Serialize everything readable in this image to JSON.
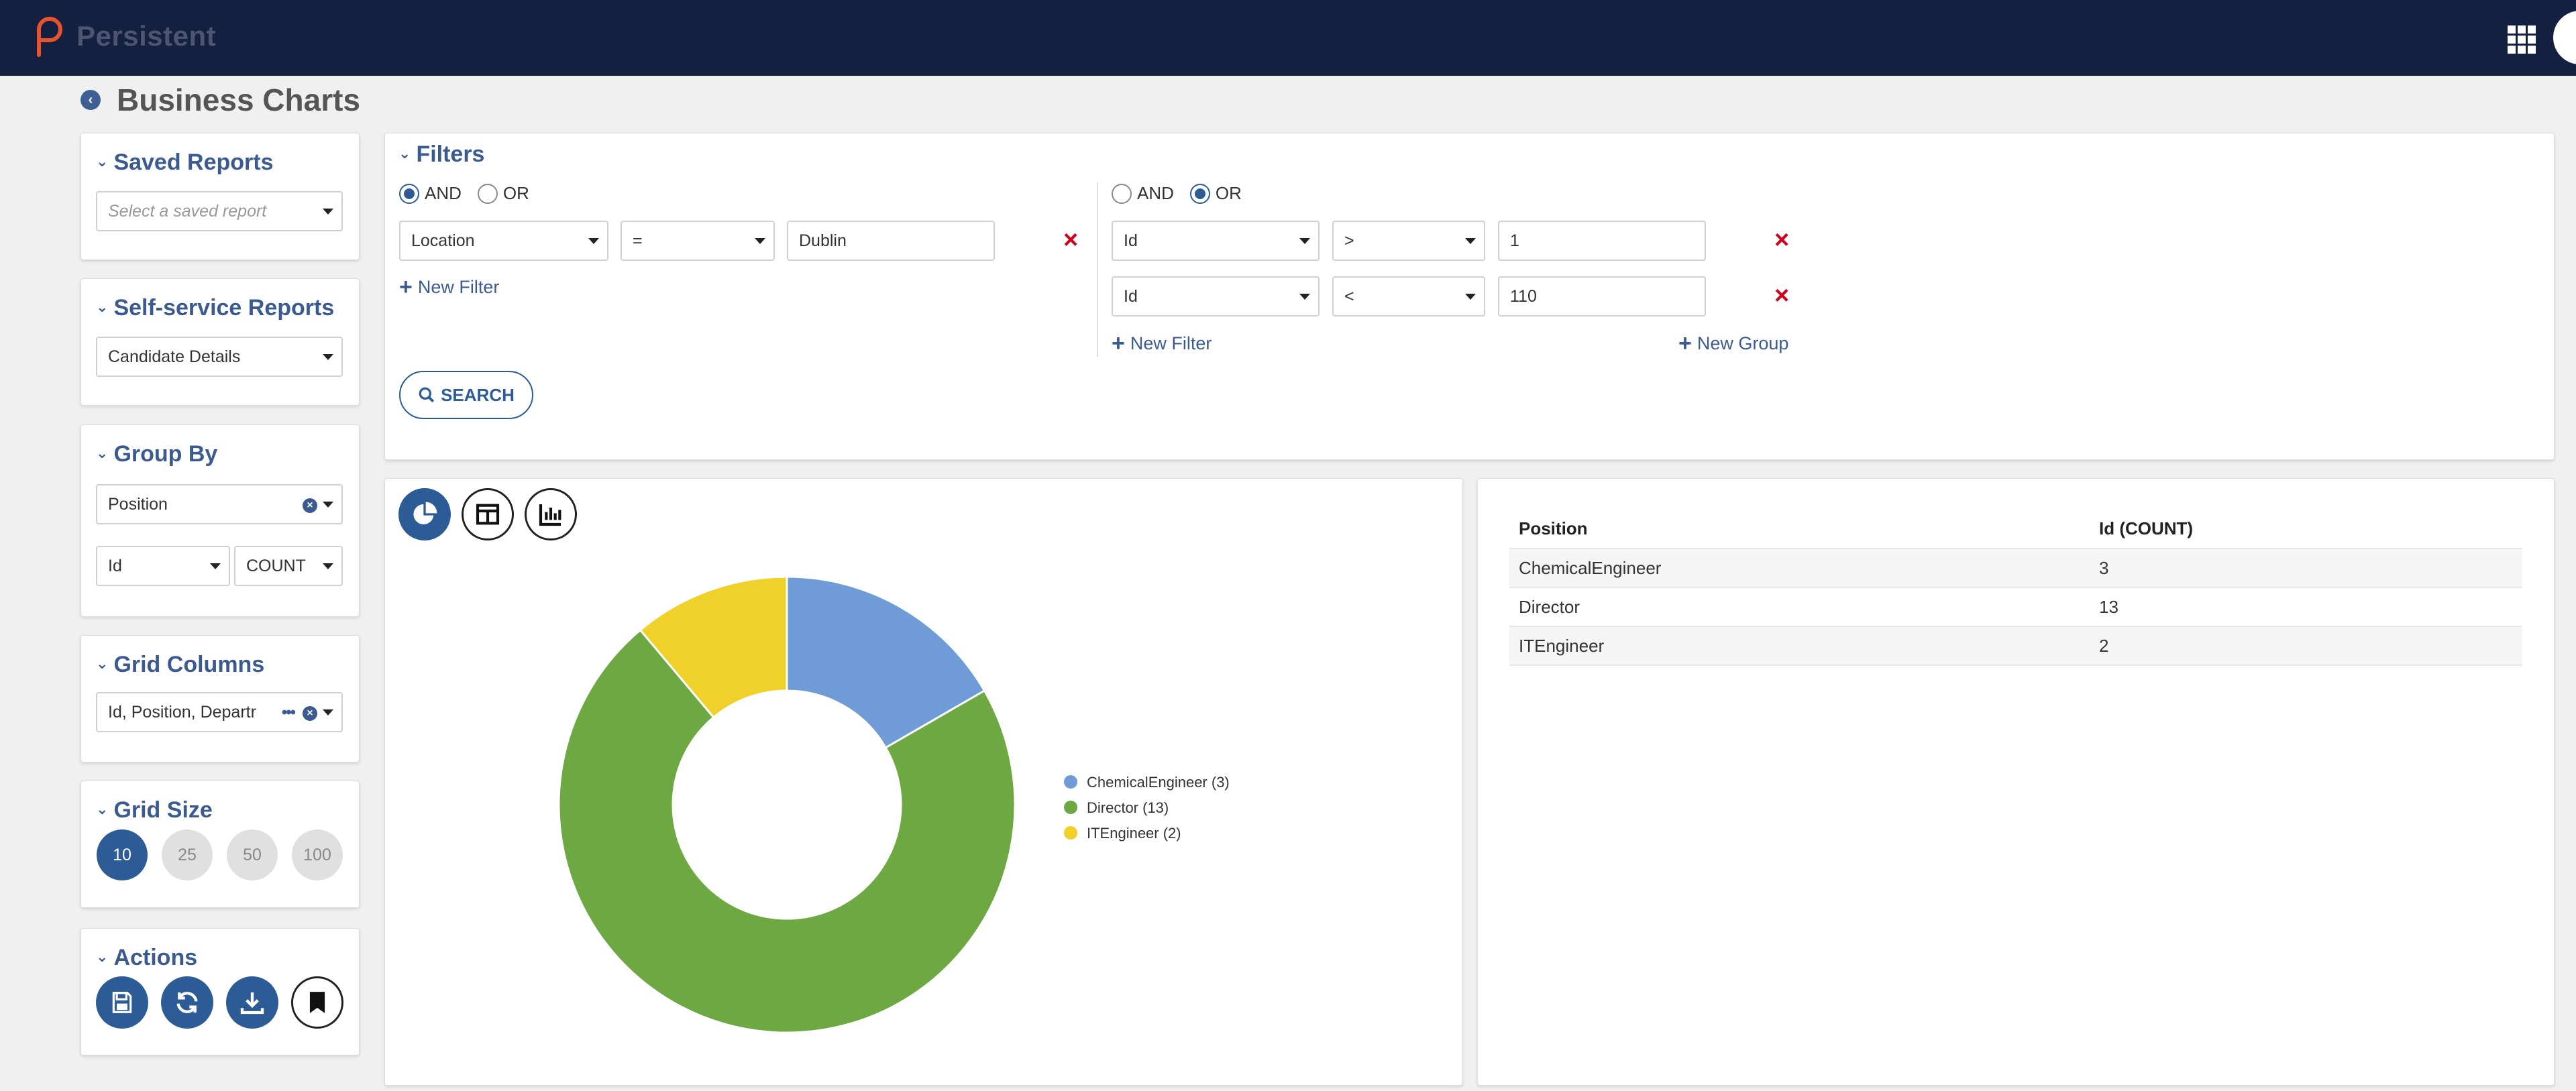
{
  "header": {
    "brand": "Persistent"
  },
  "page": {
    "title": "Business Charts"
  },
  "saved_reports": {
    "title": "Saved Reports",
    "placeholder": "Select a saved report"
  },
  "self_service": {
    "title": "Self-service Reports",
    "value": "Candidate Details"
  },
  "group_by": {
    "title": "Group By",
    "field": "Position",
    "measure": "Id",
    "aggregate": "COUNT"
  },
  "grid_columns": {
    "title": "Grid Columns",
    "value": "Id, Position, Departr"
  },
  "grid_size": {
    "title": "Grid Size",
    "options": [
      "10",
      "25",
      "50",
      "100"
    ],
    "selected": "10"
  },
  "actions": {
    "title": "Actions",
    "buttons": [
      "save-icon",
      "refresh-icon",
      "download-icon",
      "bookmark-icon"
    ]
  },
  "filters": {
    "title": "Filters",
    "left": {
      "and_label": "AND",
      "or_label": "OR",
      "selected": "AND",
      "rows": [
        {
          "field": "Location",
          "op": "=",
          "value": "Dublin"
        }
      ],
      "new_filter": "New Filter"
    },
    "right": {
      "and_label": "AND",
      "or_label": "OR",
      "selected": "OR",
      "rows": [
        {
          "field": "Id",
          "op": ">",
          "value": "1"
        },
        {
          "field": "Id",
          "op": "<",
          "value": "110"
        }
      ],
      "new_filter": "New Filter",
      "new_group": "New Group"
    },
    "search_label": "SEARCH"
  },
  "chart_data": {
    "type": "pie",
    "categories": [
      "ChemicalEngineer",
      "Director",
      "ITEngineer"
    ],
    "values": [
      3,
      13,
      2
    ],
    "legend": [
      "ChemicalEngineer (3)",
      "Director (13)",
      "ITEngineer (2)"
    ],
    "colors": [
      "#6f9bd6",
      "#6ea843",
      "#f0d12a"
    ],
    "donut": true,
    "legend_position": "right"
  },
  "table": {
    "headers": [
      "Position",
      "Id (COUNT)"
    ],
    "rows": [
      [
        "ChemicalEngineer",
        "3"
      ],
      [
        "Director",
        "13"
      ],
      [
        "ITEngineer",
        "2"
      ]
    ]
  },
  "colors": {
    "primary": "#2d5b96",
    "header": "#14203f",
    "danger": "#d0021b"
  }
}
